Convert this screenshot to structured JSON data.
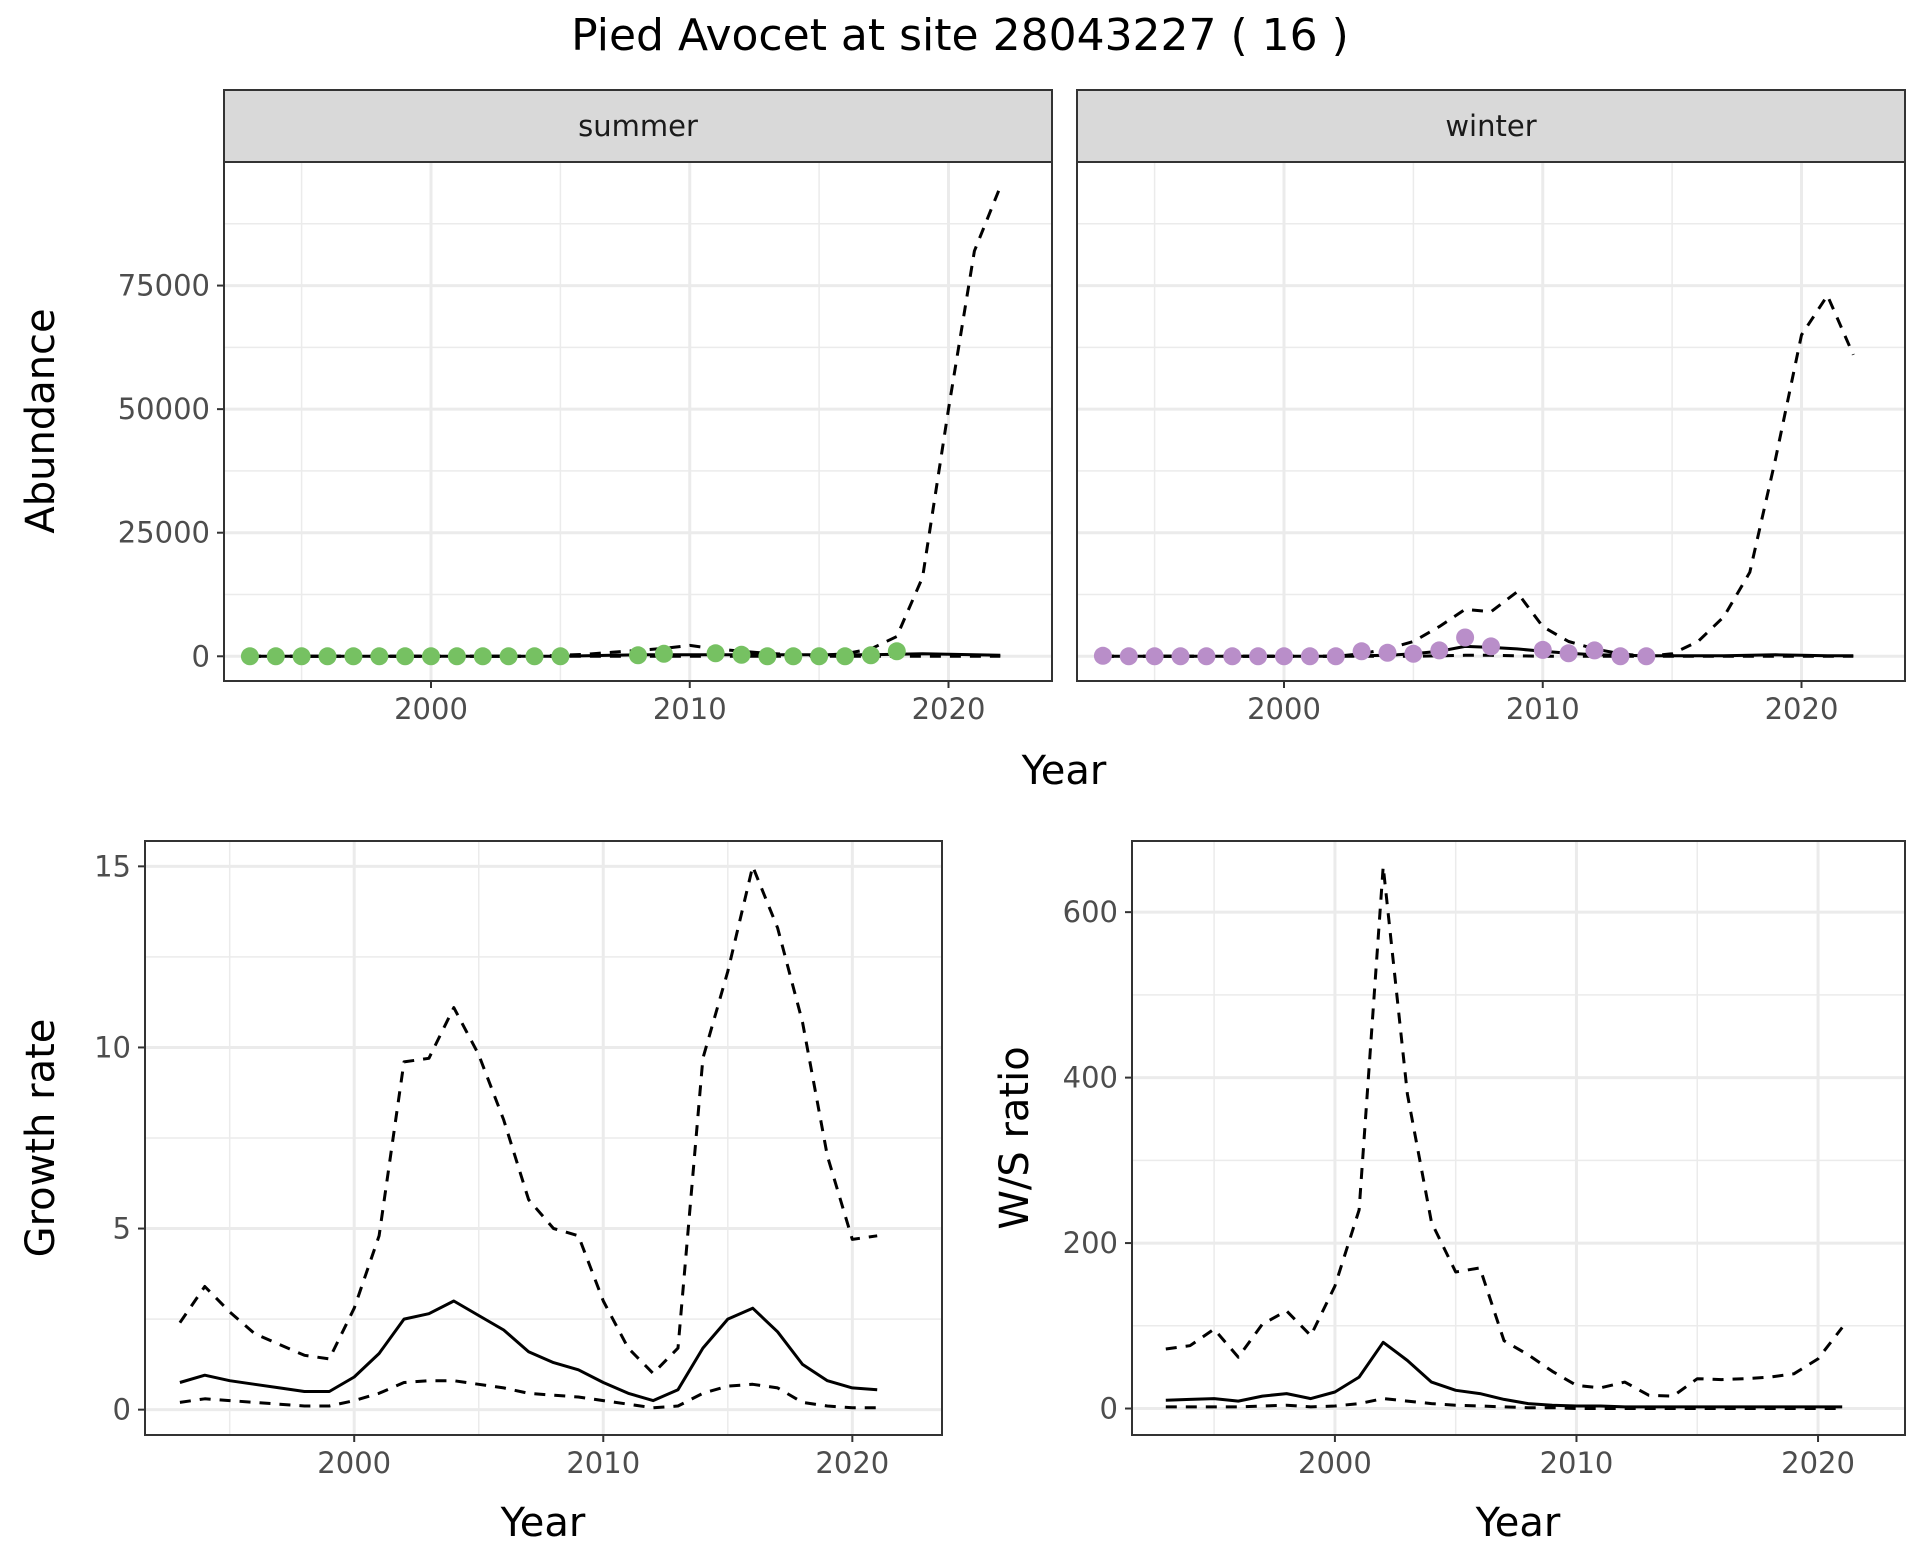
{
  "figure": {
    "title": "Pied Avocet at site 28043227 ( 16 )"
  },
  "colors": {
    "summer_points": "#76c162",
    "winter_points": "#b98ec9",
    "lines": "#000000",
    "strip_fill": "#d9d9d9",
    "grid": "#ebebeb"
  },
  "chart_data": [
    {
      "type": "line",
      "panel": "abundance",
      "facets": [
        "summer",
        "winter"
      ],
      "xlabel": "Year",
      "ylabel": "Abundance",
      "xlim": [
        1992,
        2024
      ],
      "ylim": [
        -5000,
        100000
      ],
      "x_ticks": [
        2000,
        2010,
        2020
      ],
      "y_ticks": [
        0,
        25000,
        50000,
        75000
      ],
      "y_tick_labels": [
        "0",
        "25000",
        "50000",
        "75000"
      ],
      "grid": true,
      "line_styles": {
        "mean": "solid",
        "lower": "dashed",
        "upper": "dashed"
      },
      "summer": {
        "years": [
          1993,
          1994,
          1995,
          1996,
          1997,
          1998,
          1999,
          2000,
          2001,
          2002,
          2003,
          2004,
          2005,
          2006,
          2007,
          2008,
          2009,
          2010,
          2011,
          2012,
          2013,
          2014,
          2015,
          2016,
          2017,
          2018,
          2019,
          2020,
          2021,
          2022
        ],
        "mean": [
          0,
          0,
          0,
          0,
          0,
          0,
          0,
          0,
          0,
          0,
          0,
          0,
          0,
          100,
          200,
          300,
          300,
          300,
          300,
          300,
          300,
          300,
          300,
          300,
          300,
          400,
          500,
          400,
          300,
          200
        ],
        "lower": [
          0,
          0,
          0,
          0,
          0,
          0,
          0,
          0,
          0,
          0,
          0,
          0,
          0,
          0,
          0,
          0,
          0,
          0,
          0,
          0,
          0,
          0,
          0,
          0,
          0,
          0,
          0,
          0,
          0,
          0
        ],
        "upper": [
          0,
          0,
          0,
          0,
          0,
          0,
          0,
          0,
          0,
          0,
          0,
          0,
          200,
          400,
          800,
          1200,
          1600,
          2200,
          1500,
          1000,
          600,
          300,
          200,
          500,
          1500,
          4000,
          16000,
          50000,
          82000,
          95000
        ],
        "observed_years": [
          1993,
          1994,
          1995,
          1996,
          1997,
          1998,
          1999,
          2000,
          2001,
          2002,
          2003,
          2004,
          2005,
          2008,
          2009,
          2011,
          2012,
          2013,
          2014,
          2015,
          2016,
          2017,
          2018
        ],
        "observed_values": [
          0,
          0,
          0,
          0,
          0,
          0,
          0,
          0,
          0,
          0,
          0,
          0,
          0,
          200,
          500,
          600,
          300,
          0,
          0,
          0,
          0,
          200,
          1000
        ]
      },
      "winter": {
        "years": [
          1993,
          1994,
          1995,
          1996,
          1997,
          1998,
          1999,
          2000,
          2001,
          2002,
          2003,
          2004,
          2005,
          2006,
          2007,
          2008,
          2009,
          2010,
          2011,
          2012,
          2013,
          2014,
          2015,
          2016,
          2017,
          2018,
          2019,
          2020,
          2021,
          2022
        ],
        "mean": [
          0,
          0,
          0,
          0,
          0,
          0,
          0,
          0,
          0,
          0,
          100,
          200,
          500,
          1000,
          2000,
          1800,
          1500,
          1000,
          600,
          300,
          200,
          100,
          100,
          100,
          100,
          200,
          300,
          200,
          100,
          100
        ],
        "lower": [
          0,
          0,
          0,
          0,
          0,
          0,
          0,
          0,
          0,
          0,
          0,
          0,
          0,
          100,
          200,
          200,
          100,
          0,
          0,
          0,
          0,
          0,
          0,
          0,
          0,
          0,
          0,
          0,
          0,
          0
        ],
        "upper": [
          0,
          0,
          0,
          0,
          0,
          0,
          0,
          0,
          0,
          0,
          500,
          1500,
          3000,
          6000,
          9500,
          9000,
          13000,
          6000,
          3000,
          1500,
          500,
          0,
          500,
          3000,
          8000,
          17000,
          40000,
          65000,
          73000,
          61000
        ],
        "observed_years": [
          1993,
          1994,
          1995,
          1996,
          1997,
          1998,
          1999,
          2000,
          2001,
          2002,
          2003,
          2004,
          2005,
          2006,
          2007,
          2008,
          2010,
          2011,
          2012,
          2013,
          2014
        ],
        "observed_values": [
          100,
          0,
          0,
          0,
          0,
          0,
          0,
          0,
          0,
          0,
          1000,
          700,
          500,
          1200,
          3800,
          2000,
          1300,
          600,
          1200,
          0,
          0
        ]
      }
    },
    {
      "type": "line",
      "panel": "growth",
      "xlabel": "Year",
      "ylabel": "Growth rate",
      "xlim": [
        1991.6,
        2023.6
      ],
      "ylim": [
        -0.7,
        15.7
      ],
      "x_ticks": [
        2000,
        2010,
        2020
      ],
      "y_ticks": [
        0,
        5,
        10,
        15
      ],
      "y_tick_labels": [
        "0",
        "5",
        "10",
        "15"
      ],
      "grid": true,
      "years": [
        1993,
        1994,
        1995,
        1996,
        1997,
        1998,
        1999,
        2000,
        2001,
        2002,
        2003,
        2004,
        2005,
        2006,
        2007,
        2008,
        2009,
        2010,
        2011,
        2012,
        2013,
        2014,
        2015,
        2016,
        2017,
        2018,
        2019,
        2020,
        2021
      ],
      "mean": [
        0.75,
        0.95,
        0.8,
        0.7,
        0.6,
        0.5,
        0.5,
        0.9,
        1.55,
        2.5,
        2.65,
        3.0,
        2.6,
        2.2,
        1.6,
        1.3,
        1.1,
        0.75,
        0.45,
        0.25,
        0.55,
        1.7,
        2.5,
        2.8,
        2.15,
        1.25,
        0.8,
        0.6,
        0.55
      ],
      "lower": [
        0.2,
        0.3,
        0.25,
        0.2,
        0.15,
        0.1,
        0.1,
        0.25,
        0.45,
        0.75,
        0.8,
        0.8,
        0.7,
        0.6,
        0.45,
        0.4,
        0.35,
        0.25,
        0.15,
        0.05,
        0.1,
        0.45,
        0.65,
        0.7,
        0.6,
        0.2,
        0.1,
        0.05,
        0.05
      ],
      "upper": [
        2.4,
        3.4,
        2.7,
        2.1,
        1.8,
        1.5,
        1.4,
        2.8,
        4.8,
        9.6,
        9.7,
        11.1,
        9.8,
        8.0,
        5.8,
        5.0,
        4.8,
        3.0,
        1.7,
        1.0,
        1.7,
        9.7,
        12.1,
        15.0,
        13.3,
        10.7,
        7.0,
        4.7,
        4.8
      ]
    },
    {
      "type": "line",
      "panel": "ratio",
      "xlabel": "Year",
      "ylabel": "W/S ratio",
      "xlim": [
        1991.6,
        2023.6
      ],
      "ylim": [
        -32,
        686
      ],
      "x_ticks": [
        2000,
        2010,
        2020
      ],
      "y_ticks": [
        0,
        200,
        400,
        600
      ],
      "y_tick_labels": [
        "0",
        "200",
        "400",
        "600"
      ],
      "grid": true,
      "years": [
        1993,
        1994,
        1995,
        1996,
        1997,
        1998,
        1999,
        2000,
        2001,
        2002,
        2003,
        2004,
        2005,
        2006,
        2007,
        2008,
        2009,
        2010,
        2011,
        2012,
        2013,
        2014,
        2015,
        2016,
        2017,
        2018,
        2019,
        2020,
        2021
      ],
      "mean": [
        10,
        11,
        12,
        9,
        15,
        18,
        12,
        20,
        38,
        80,
        58,
        32,
        22,
        18,
        11,
        6,
        4,
        3,
        3,
        2,
        2,
        2,
        2,
        2,
        2,
        2,
        2,
        2,
        2
      ],
      "lower": [
        2,
        2,
        2,
        2,
        3,
        4,
        2,
        3,
        6,
        12,
        9,
        6,
        4,
        3,
        2,
        1,
        1,
        0,
        0,
        0,
        0,
        0,
        0,
        0,
        0,
        0,
        0,
        0,
        0
      ],
      "upper": [
        72,
        76,
        96,
        62,
        102,
        118,
        88,
        148,
        240,
        655,
        380,
        225,
        165,
        170,
        82,
        65,
        45,
        28,
        25,
        32,
        16,
        15,
        36,
        35,
        36,
        38,
        42,
        60,
        98
      ]
    }
  ]
}
